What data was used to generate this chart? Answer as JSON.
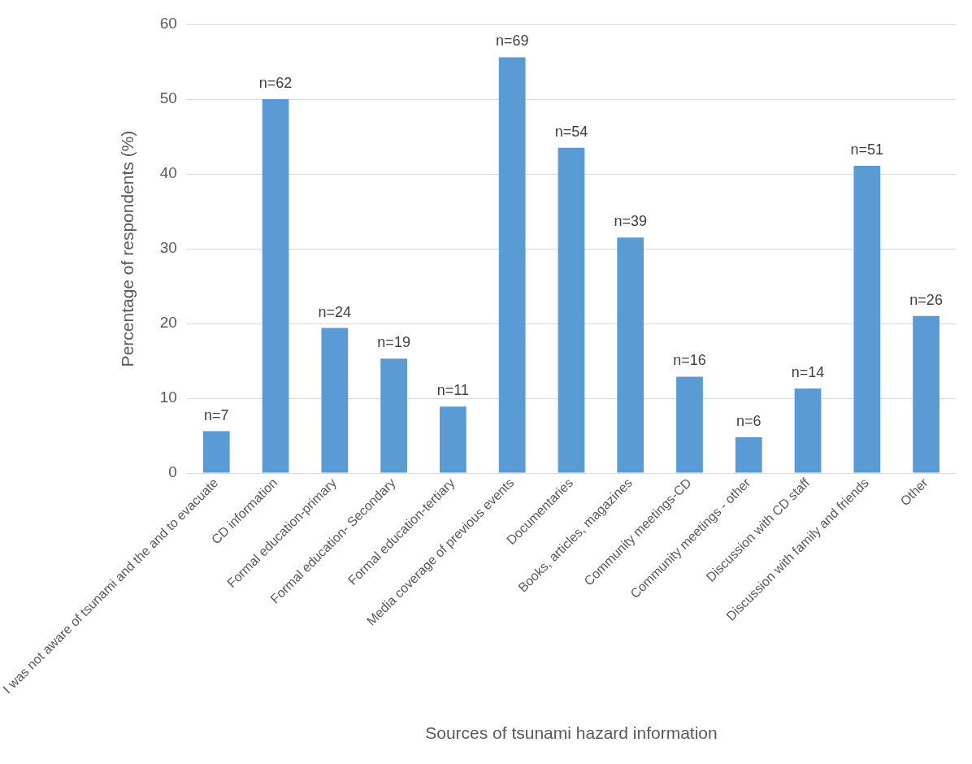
{
  "chart_data": {
    "type": "bar",
    "xlabel": "Sources of tsunami hazard information",
    "ylabel": "Percentage of respondents (%)",
    "categories": [
      "I was not aware of tsunami and the and to evacuate",
      "CD information",
      "Formal education-primary",
      "Formal education- Secondary",
      "Formal education-tertiary",
      "Media coverage of previous events",
      "Documentaries",
      "Books, articles, magazines",
      "Community meetings-CD",
      "Community meetings - other",
      "Discussion with CD staff",
      "Discussion with family and friends",
      "Other"
    ],
    "values": [
      5.6,
      50.0,
      19.4,
      15.3,
      8.9,
      55.6,
      43.5,
      31.5,
      12.9,
      4.8,
      11.3,
      41.1,
      21.0
    ],
    "annotations": [
      {
        "text": "n=7",
        "x": "I was not aware of tsunami and the and to evacuate",
        "y": 5.6
      },
      {
        "text": "n=62",
        "x": "CD information",
        "y": 50.0
      },
      {
        "text": "n=24",
        "x": "Formal education-primary",
        "y": 19.4
      },
      {
        "text": "n=19",
        "x": "Formal education- Secondary",
        "y": 15.3
      },
      {
        "text": "n=11",
        "x": "Formal education-tertiary",
        "y": 8.9
      },
      {
        "text": "n=69",
        "x": "Media coverage of previous events",
        "y": 55.6
      },
      {
        "text": "n=54",
        "x": "Documentaries",
        "y": 43.5
      },
      {
        "text": "n=39",
        "x": "Books, articles, magazines",
        "y": 31.5
      },
      {
        "text": "n=16",
        "x": "Community meetings-CD",
        "y": 12.9
      },
      {
        "text": "n=6",
        "x": "Community meetings - other",
        "y": 4.8
      },
      {
        "text": "n=14",
        "x": "Discussion with CD staff",
        "y": 11.3
      },
      {
        "text": "n=51",
        "x": "Discussion with family and friends",
        "y": 41.1
      },
      {
        "text": "n=26",
        "x": "Other",
        "y": 21.0
      }
    ],
    "color": "#5b9bd5",
    "ylim": [
      0,
      60
    ],
    "yticks": [
      0,
      10,
      20,
      30,
      40,
      50,
      60
    ],
    "grid": "y",
    "legend": false
  }
}
